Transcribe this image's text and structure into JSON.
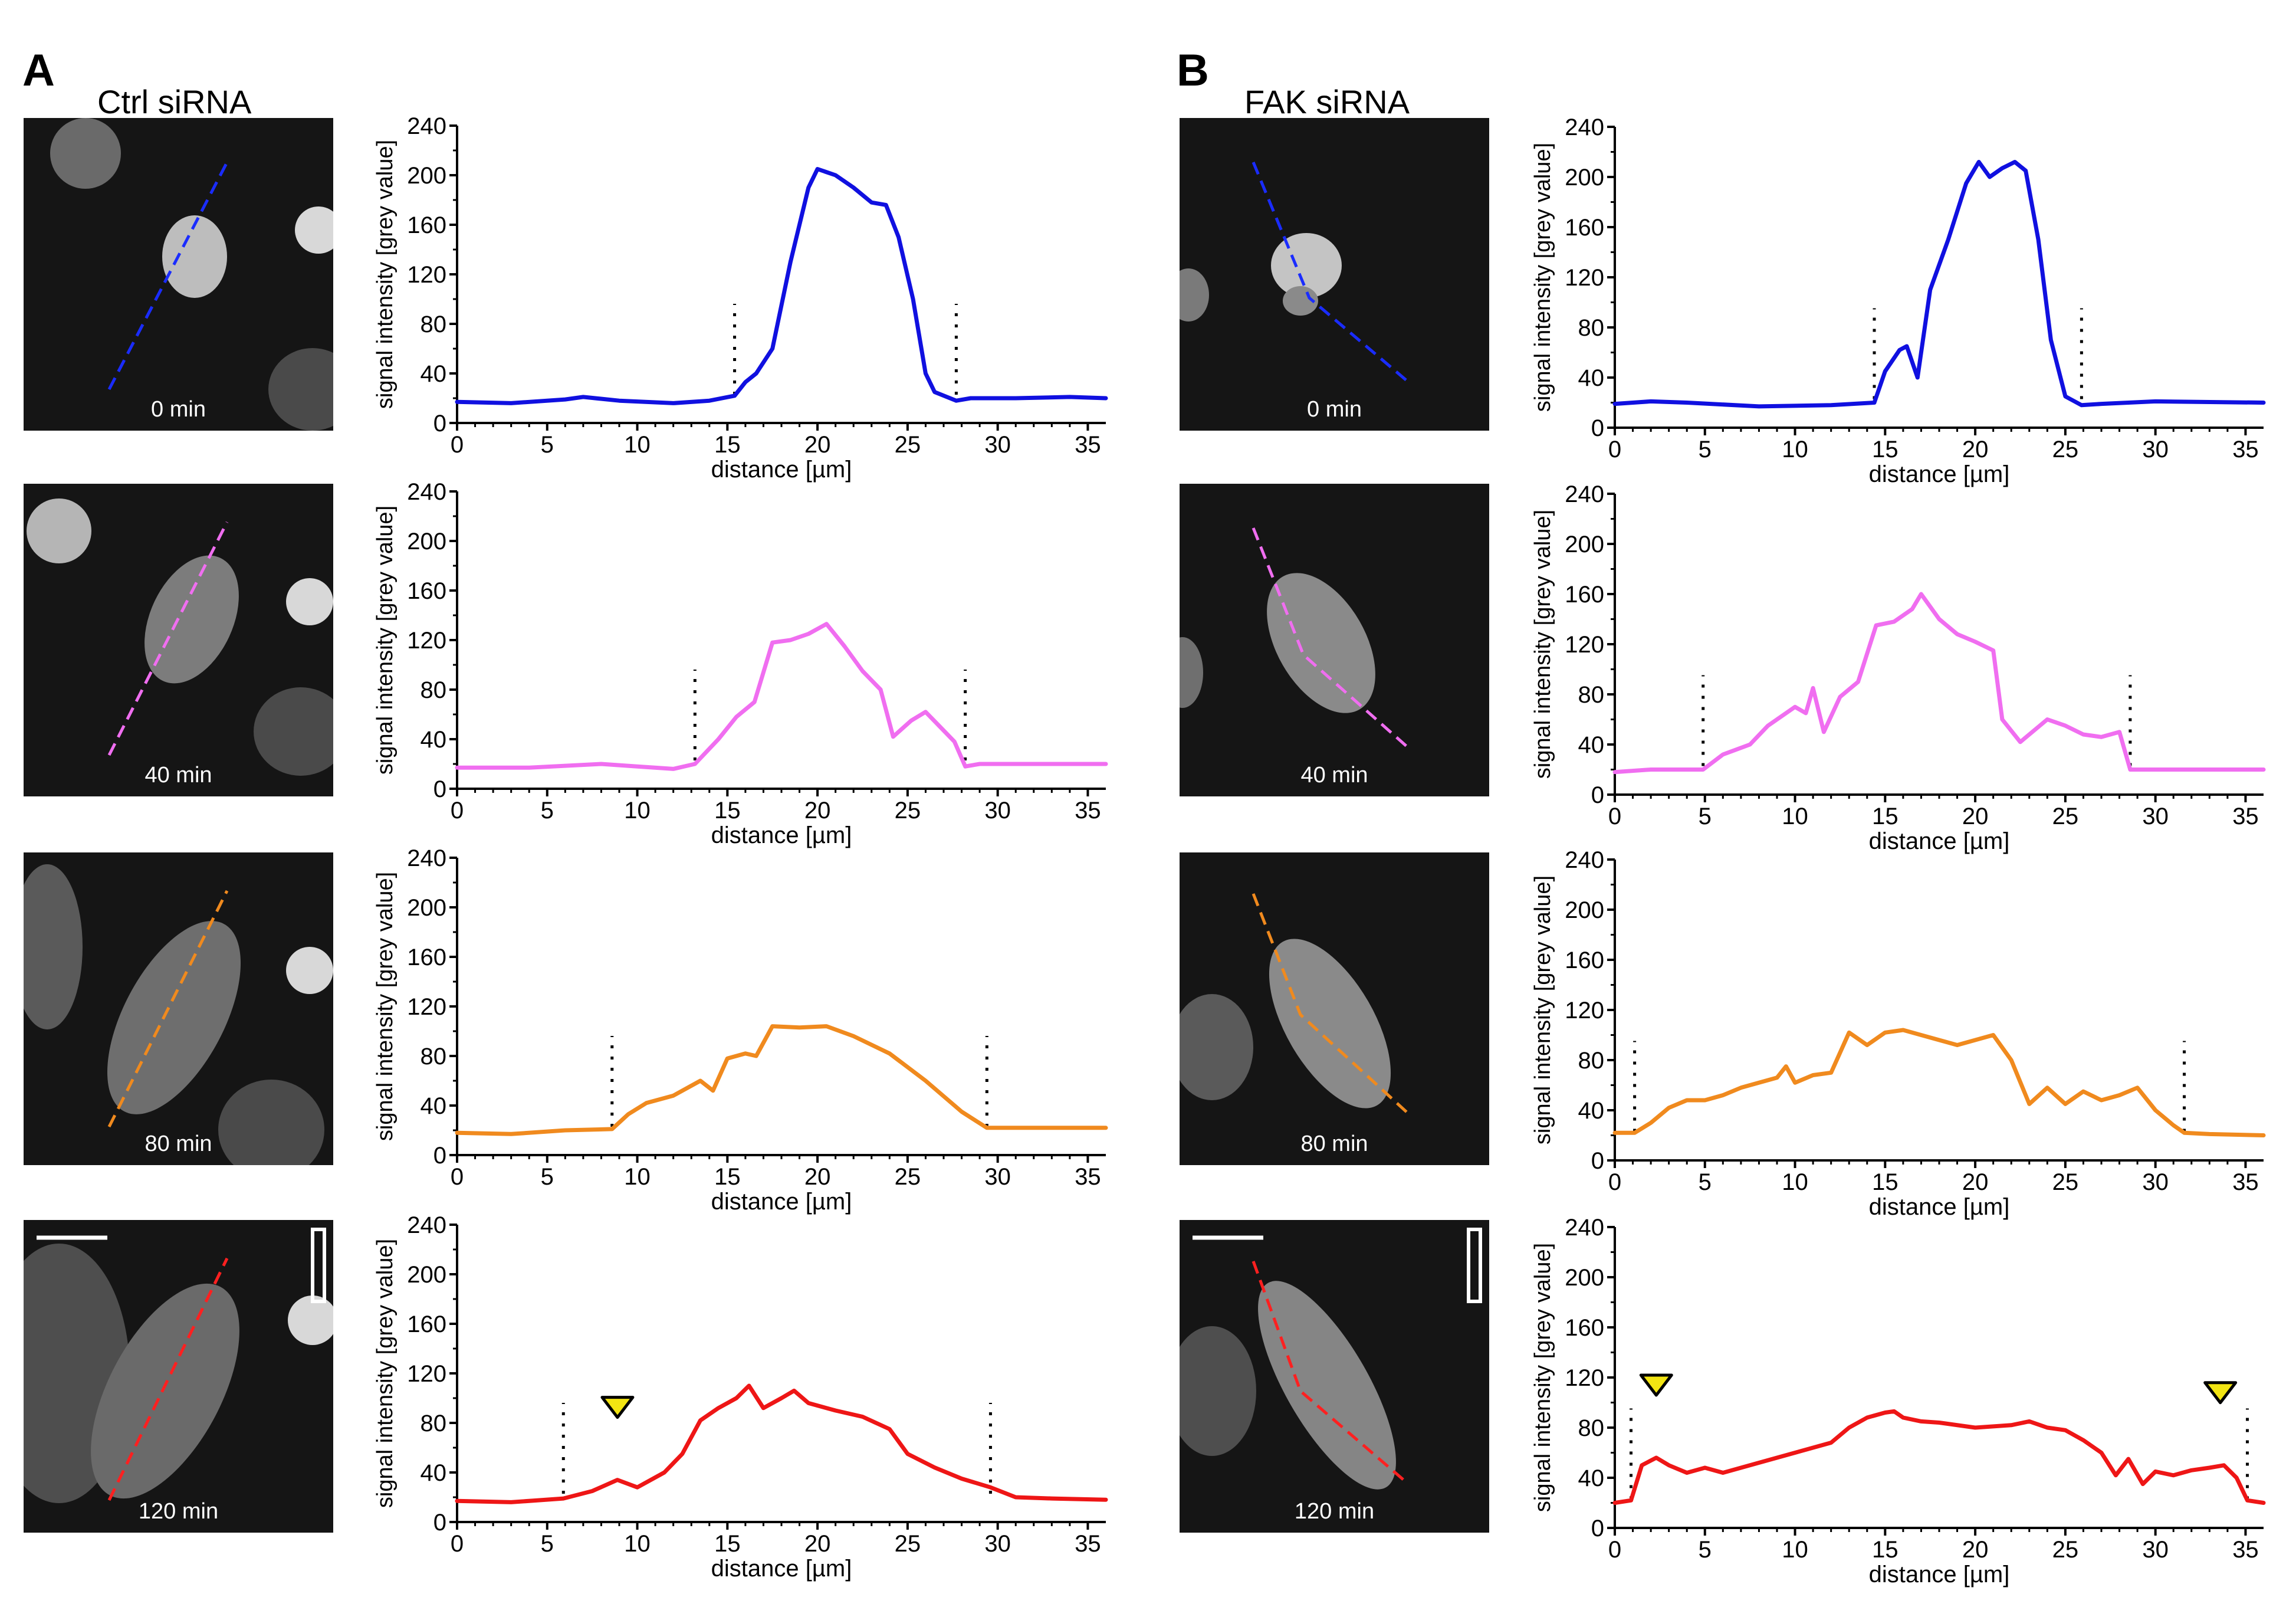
{
  "figure": {
    "panels": [
      {
        "letter": "A",
        "condition": "Ctrl siRNA"
      },
      {
        "letter": "B",
        "condition": "FAK siRNA"
      }
    ],
    "image_labels": [
      "0 min",
      "40 min",
      "80 min",
      "120 min"
    ],
    "colors": {
      "0 min": "#1010e0",
      "40 min": "#f06ef0",
      "80 min": "#f08a1e",
      "120 min": "#ee1616",
      "arrowhead": "#f2e412"
    }
  },
  "chart_data": [
    {
      "id": "A0",
      "panel": "A",
      "time": "0 min",
      "type": "line",
      "color": "#1010e0",
      "xlabel": "distance [µm]",
      "ylabel": "signal intensity [grey value]",
      "xlim": [
        0,
        36
      ],
      "ylim": [
        0,
        240
      ],
      "xticks": [
        0,
        5,
        10,
        15,
        20,
        25,
        30,
        35
      ],
      "yticks": [
        0,
        40,
        80,
        120,
        160,
        200,
        240
      ],
      "boundaries": [
        15.4,
        27.7
      ],
      "arrowheads": [],
      "x": [
        0,
        3,
        6,
        7,
        9,
        12,
        14,
        15.4,
        16,
        16.6,
        17.5,
        18.5,
        19.5,
        20,
        21,
        22,
        23,
        23.8,
        24.5,
        25.3,
        26,
        26.5,
        27.7,
        28.5,
        31,
        34,
        36
      ],
      "y": [
        17,
        16,
        19,
        21,
        18,
        16,
        18,
        22,
        33,
        40,
        60,
        130,
        190,
        205,
        200,
        190,
        178,
        176,
        150,
        100,
        40,
        25,
        18,
        20,
        20,
        21,
        20
      ]
    },
    {
      "id": "A40",
      "panel": "A",
      "time": "40 min",
      "type": "line",
      "color": "#f06ef0",
      "xlabel": "distance [µm]",
      "ylabel": "signal intensity [grey value]",
      "xlim": [
        0,
        36
      ],
      "ylim": [
        0,
        240
      ],
      "xticks": [
        0,
        5,
        10,
        15,
        20,
        25,
        30,
        35
      ],
      "yticks": [
        0,
        40,
        80,
        120,
        160,
        200,
        240
      ],
      "boundaries": [
        13.2,
        28.2
      ],
      "arrowheads": [],
      "x": [
        0,
        4,
        8,
        10,
        12,
        13.2,
        14.5,
        15.5,
        16.5,
        17.5,
        18.5,
        19.5,
        20.5,
        21.5,
        22.5,
        23.5,
        24.2,
        25.2,
        26,
        26.8,
        27.6,
        28.2,
        29,
        32,
        36
      ],
      "y": [
        17,
        17,
        20,
        18,
        16,
        20,
        40,
        58,
        70,
        118,
        120,
        125,
        133,
        115,
        95,
        80,
        42,
        55,
        62,
        50,
        38,
        18,
        20,
        20,
        20
      ]
    },
    {
      "id": "A80",
      "panel": "A",
      "time": "80 min",
      "type": "line",
      "color": "#f08a1e",
      "xlabel": "distance [µm]",
      "ylabel": "signal intensity [grey value]",
      "xlim": [
        0,
        36
      ],
      "ylim": [
        0,
        240
      ],
      "xticks": [
        0,
        5,
        10,
        15,
        20,
        25,
        30,
        35
      ],
      "yticks": [
        0,
        40,
        80,
        120,
        160,
        200,
        240
      ],
      "boundaries": [
        8.6,
        29.4
      ],
      "arrowheads": [],
      "x": [
        0,
        3,
        6,
        8.6,
        9.5,
        10.5,
        12,
        13.5,
        14.2,
        15,
        16,
        16.6,
        17.5,
        19,
        20.5,
        22,
        24,
        26,
        28,
        29.4,
        31,
        34,
        36
      ],
      "y": [
        18,
        17,
        20,
        21,
        33,
        42,
        48,
        60,
        52,
        78,
        82,
        80,
        104,
        103,
        104,
        96,
        82,
        60,
        35,
        22,
        22,
        22,
        22
      ]
    },
    {
      "id": "A120",
      "panel": "A",
      "time": "120 min",
      "type": "line",
      "color": "#ee1616",
      "xlabel": "distance [µm]",
      "ylabel": "signal intensity [grey value]",
      "xlim": [
        0,
        36
      ],
      "ylim": [
        0,
        240
      ],
      "xticks": [
        0,
        5,
        10,
        15,
        20,
        25,
        30,
        35
      ],
      "yticks": [
        0,
        40,
        80,
        120,
        160,
        200,
        240
      ],
      "boundaries": [
        5.9,
        29.6
      ],
      "arrowheads": [
        8.9
      ],
      "x": [
        0,
        3,
        5.9,
        7.5,
        8.9,
        10,
        11.5,
        12.5,
        13.5,
        14.5,
        15.5,
        16.2,
        17,
        18,
        18.7,
        19.5,
        21,
        22.5,
        24,
        25,
        26.5,
        28,
        29.6,
        31,
        33,
        36
      ],
      "y": [
        17,
        16,
        19,
        25,
        34,
        28,
        40,
        55,
        82,
        92,
        100,
        110,
        92,
        100,
        106,
        96,
        90,
        85,
        75,
        55,
        44,
        35,
        28,
        20,
        19,
        18
      ]
    },
    {
      "id": "B0",
      "panel": "B",
      "time": "0 min",
      "type": "line",
      "color": "#1010e0",
      "xlabel": "distance [µm]",
      "ylabel": "signal intensity [grey value]",
      "xlim": [
        0,
        36
      ],
      "ylim": [
        0,
        240
      ],
      "xticks": [
        0,
        5,
        10,
        15,
        20,
        25,
        30,
        35
      ],
      "yticks": [
        0,
        40,
        80,
        120,
        160,
        200,
        240
      ],
      "boundaries": [
        14.4,
        25.9
      ],
      "arrowheads": [],
      "x": [
        0,
        2,
        4,
        8,
        12,
        14.4,
        15,
        15.8,
        16.2,
        16.8,
        17.5,
        18.5,
        19.5,
        20.2,
        20.8,
        21.5,
        22.2,
        22.8,
        23.5,
        24.2,
        25,
        25.9,
        27,
        30,
        36
      ],
      "y": [
        19,
        21,
        20,
        17,
        18,
        20,
        45,
        62,
        65,
        40,
        110,
        150,
        195,
        212,
        200,
        207,
        212,
        205,
        150,
        70,
        25,
        18,
        19,
        21,
        20
      ]
    },
    {
      "id": "B40",
      "panel": "B",
      "time": "40 min",
      "type": "line",
      "color": "#f06ef0",
      "xlabel": "distance [µm]",
      "ylabel": "signal intensity [grey value]",
      "xlim": [
        0,
        36
      ],
      "ylim": [
        0,
        240
      ],
      "xticks": [
        0,
        5,
        10,
        15,
        20,
        25,
        30,
        35
      ],
      "yticks": [
        0,
        40,
        80,
        120,
        160,
        200,
        240
      ],
      "boundaries": [
        4.9,
        28.6
      ],
      "arrowheads": [],
      "x": [
        0,
        2,
        4.9,
        6,
        7.5,
        8.5,
        10,
        10.6,
        11,
        11.6,
        12.5,
        13.5,
        14.5,
        15.5,
        16.5,
        17,
        18,
        19,
        20,
        21,
        21.5,
        22.5,
        24,
        25,
        26,
        27,
        28,
        28.6,
        29,
        32,
        36
      ],
      "y": [
        18,
        20,
        20,
        32,
        40,
        55,
        70,
        65,
        85,
        50,
        78,
        90,
        135,
        138,
        148,
        160,
        140,
        128,
        122,
        115,
        60,
        42,
        60,
        55,
        48,
        46,
        50,
        20,
        20,
        20,
        20
      ]
    },
    {
      "id": "B80",
      "panel": "B",
      "time": "80 min",
      "type": "line",
      "color": "#f08a1e",
      "xlabel": "distance [µm]",
      "ylabel": "signal intensity [grey value]",
      "xlim": [
        0,
        36
      ],
      "ylim": [
        0,
        240
      ],
      "xticks": [
        0,
        5,
        10,
        15,
        20,
        25,
        30,
        35
      ],
      "yticks": [
        0,
        40,
        80,
        120,
        160,
        200,
        240
      ],
      "boundaries": [
        1.1,
        31.6
      ],
      "arrowheads": [],
      "x": [
        0,
        1.1,
        2,
        3,
        4,
        5,
        6,
        7,
        8,
        9,
        9.5,
        10,
        11,
        12,
        13,
        14,
        15,
        16,
        17,
        18,
        19,
        20,
        21,
        22,
        23,
        24,
        25,
        26,
        27,
        28,
        29,
        30,
        31,
        31.6,
        33,
        36
      ],
      "y": [
        22,
        22,
        30,
        42,
        48,
        48,
        52,
        58,
        62,
        66,
        75,
        62,
        68,
        70,
        102,
        92,
        102,
        104,
        100,
        96,
        92,
        96,
        100,
        80,
        45,
        58,
        45,
        55,
        48,
        52,
        58,
        40,
        28,
        22,
        21,
        20
      ]
    },
    {
      "id": "B120",
      "panel": "B",
      "time": "120 min",
      "type": "line",
      "color": "#ee1616",
      "xlabel": "distance [µm]",
      "ylabel": "signal intensity [grey value]",
      "xlim": [
        0,
        36
      ],
      "ylim": [
        0,
        240
      ],
      "xticks": [
        0,
        5,
        10,
        15,
        20,
        25,
        30,
        35
      ],
      "yticks": [
        0,
        40,
        80,
        120,
        160,
        200,
        240
      ],
      "boundaries": [
        0.9,
        35.1
      ],
      "arrowheads": [
        2.3,
        33.6
      ],
      "x": [
        0,
        0.9,
        1.5,
        2.3,
        3,
        4,
        5,
        6,
        7,
        8,
        10,
        12,
        13,
        14,
        15,
        15.5,
        16,
        17,
        18,
        20,
        22,
        23,
        24,
        25,
        26,
        27,
        27.8,
        28.5,
        29.3,
        30,
        31,
        32,
        33,
        33.8,
        34.5,
        35.1,
        36
      ],
      "y": [
        20,
        22,
        50,
        56,
        50,
        44,
        48,
        44,
        48,
        52,
        60,
        68,
        80,
        88,
        92,
        93,
        88,
        85,
        84,
        80,
        82,
        85,
        80,
        78,
        70,
        60,
        42,
        55,
        35,
        45,
        42,
        46,
        48,
        50,
        40,
        22,
        20
      ]
    }
  ]
}
